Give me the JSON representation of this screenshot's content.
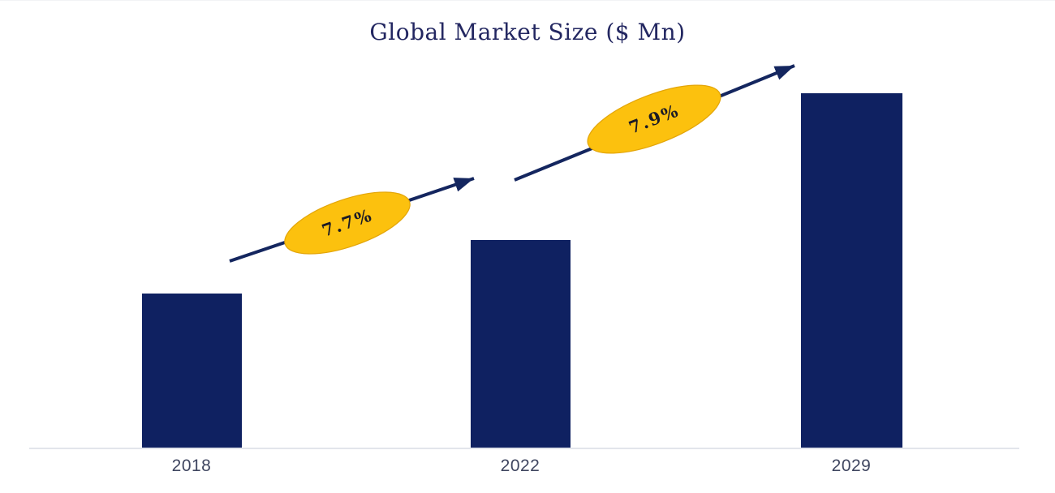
{
  "chart_data": {
    "type": "bar",
    "title": "Global Market Size ($ Mn)",
    "categories": [
      "2018",
      "2022",
      "2029"
    ],
    "values": [
      100,
      135,
      230
    ],
    "xlabel": "",
    "ylabel": "",
    "ylim": [
      0,
      245
    ],
    "grid": false,
    "legend": false,
    "value_axis_visible": false,
    "annotations": [
      {
        "label": "7.7%",
        "type": "growth-arrow",
        "from": "2018",
        "to": "2022"
      },
      {
        "label": "7.9%",
        "type": "growth-arrow",
        "from": "2022",
        "to": "2029"
      }
    ]
  },
  "colors": {
    "bar": "#0F2161",
    "arrow": "#14265F",
    "gold": "#FCC10E",
    "gold-edge": "#E3A508",
    "ellipse-text": "#1A1A26",
    "title-text": "#232761",
    "axis-line": "#E2E5EB",
    "tick-text": "#3F4660",
    "bg": "#FFFFFF"
  }
}
